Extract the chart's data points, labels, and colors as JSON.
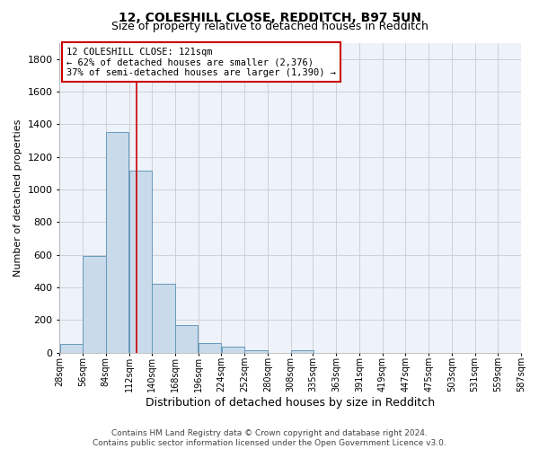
{
  "title": "12, COLESHILL CLOSE, REDDITCH, B97 5UN",
  "subtitle": "Size of property relative to detached houses in Redditch",
  "xlabel": "Distribution of detached houses by size in Redditch",
  "ylabel": "Number of detached properties",
  "bar_color": "#c9daea",
  "bar_edge_color": "#6699bb",
  "background_color": "#ffffff",
  "plot_bg_color": "#eef2fa",
  "grid_color": "#cccccc",
  "bins_left": [
    28,
    56,
    84,
    112,
    140,
    168,
    196,
    224,
    252,
    280,
    308,
    335,
    363,
    391,
    419,
    447,
    475,
    503,
    531,
    559
  ],
  "bin_width": 28,
  "bin_labels": [
    "28sqm",
    "56sqm",
    "84sqm",
    "112sqm",
    "140sqm",
    "168sqm",
    "196sqm",
    "224sqm",
    "252sqm",
    "280sqm",
    "308sqm",
    "335sqm",
    "363sqm",
    "391sqm",
    "419sqm",
    "447sqm",
    "475sqm",
    "503sqm",
    "531sqm",
    "559sqm",
    "587sqm"
  ],
  "values": [
    55,
    595,
    1350,
    1115,
    425,
    170,
    60,
    40,
    15,
    0,
    15,
    0,
    0,
    0,
    0,
    0,
    0,
    0,
    0,
    0
  ],
  "ylim": [
    0,
    1900
  ],
  "yticks": [
    0,
    200,
    400,
    600,
    800,
    1000,
    1200,
    1400,
    1600,
    1800
  ],
  "xlim_left": 28,
  "xlim_right": 587,
  "property_line_x": 121,
  "property_line_color": "#cc0000",
  "annotation_line1": "12 COLESHILL CLOSE: 121sqm",
  "annotation_line2": "← 62% of detached houses are smaller (2,376)",
  "annotation_line3": "37% of semi-detached houses are larger (1,390) →",
  "annotation_box_color": "#cc0000",
  "footer_line1": "Contains HM Land Registry data © Crown copyright and database right 2024.",
  "footer_line2": "Contains public sector information licensed under the Open Government Licence v3.0.",
  "title_fontsize": 10,
  "subtitle_fontsize": 9,
  "axis_label_fontsize": 8,
  "tick_fontsize": 7,
  "annotation_fontsize": 7.5,
  "footer_fontsize": 6.5
}
